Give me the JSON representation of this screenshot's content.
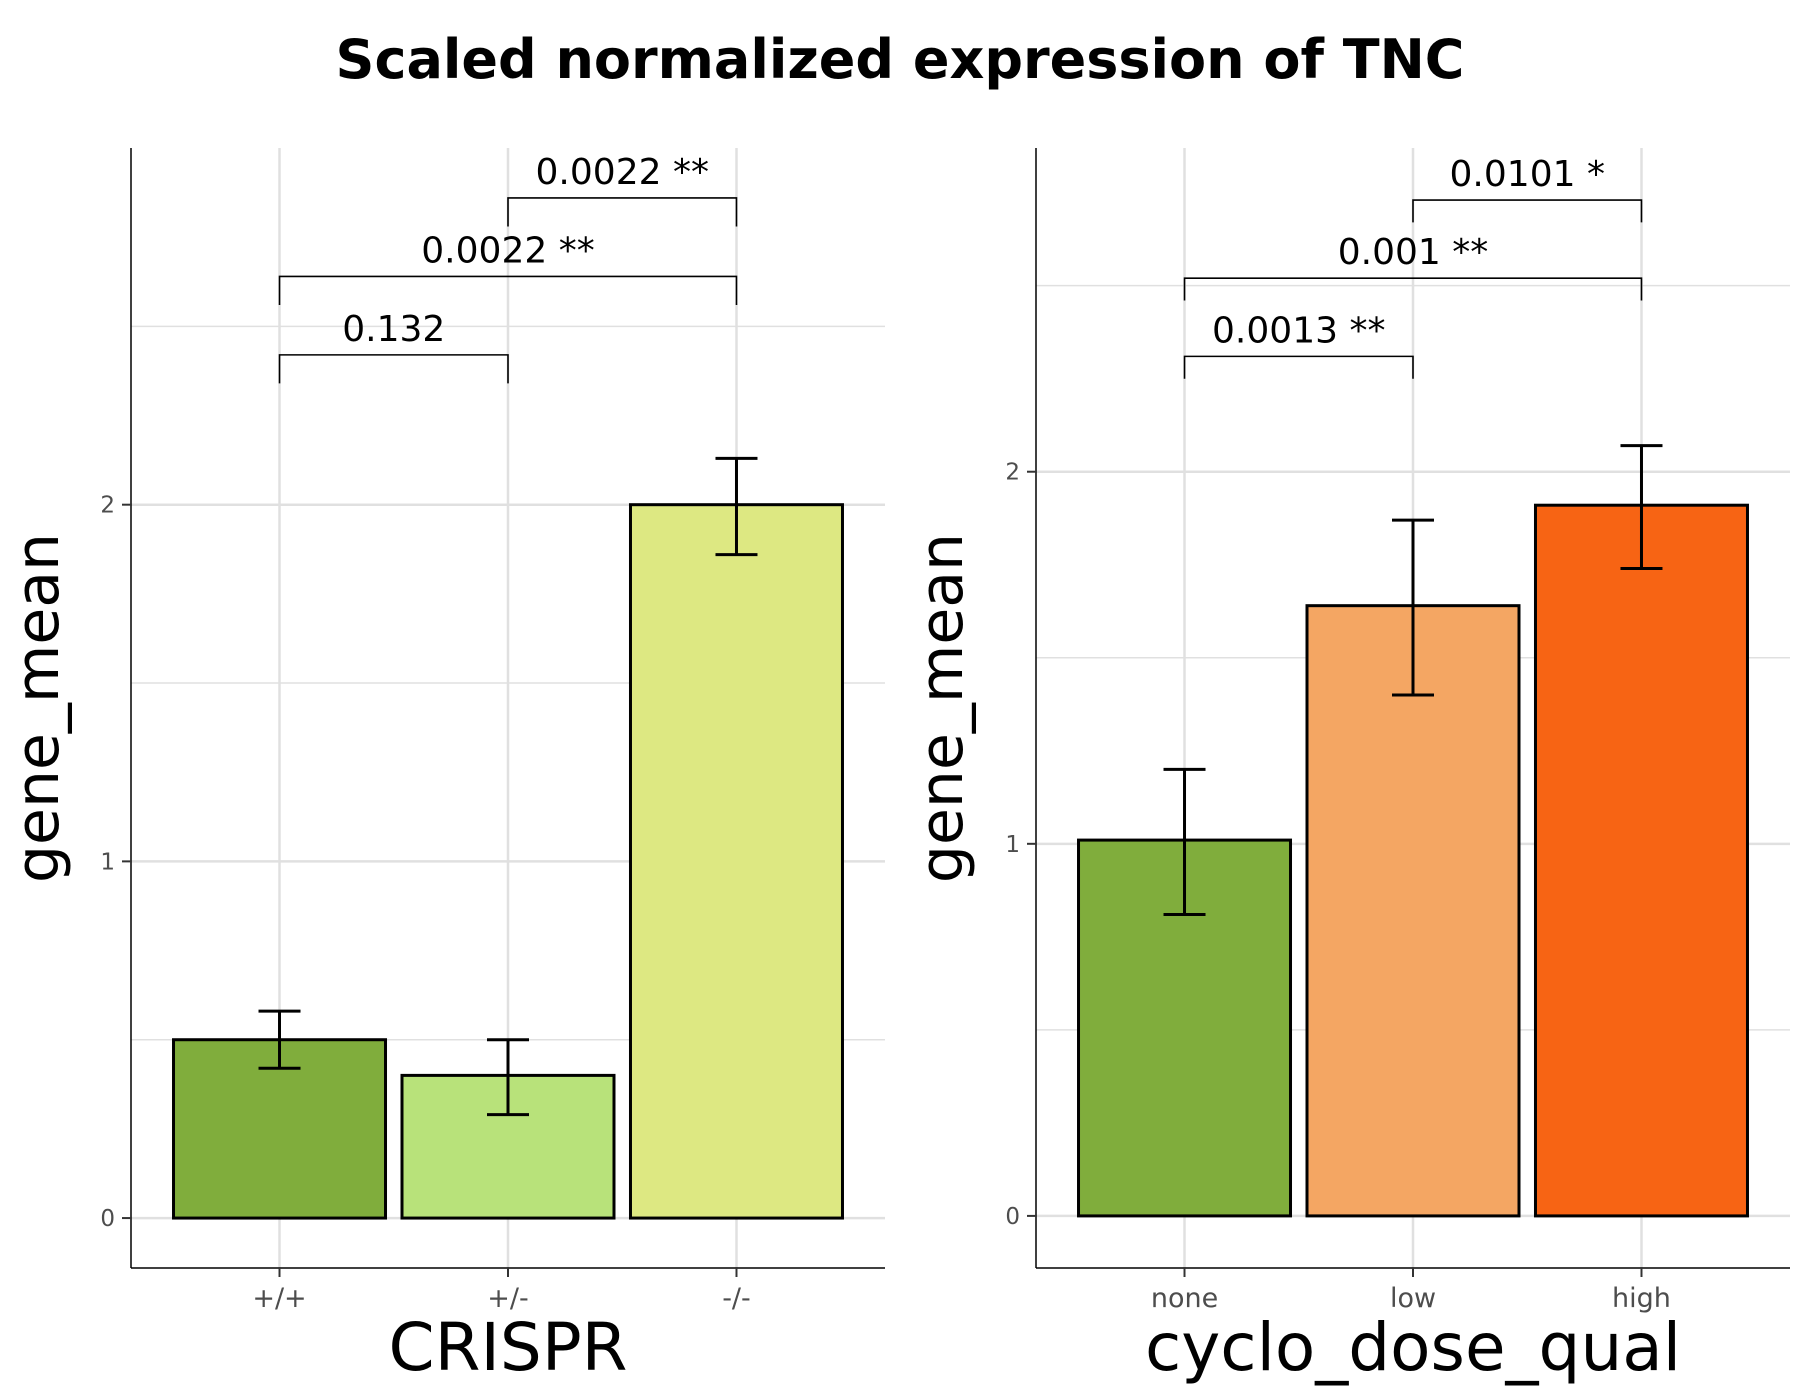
{
  "title": "Scaled normalized expression of TNC",
  "chart_data": [
    {
      "type": "bar",
      "title": "Scaled normalized expression of TNC",
      "xlabel": "CRISPR",
      "ylabel": "gene_mean",
      "categories": [
        "+/+",
        "+/-",
        "-/-"
      ],
      "values": [
        0.5,
        0.4,
        2.0
      ],
      "error_low": [
        0.42,
        0.29,
        1.86
      ],
      "error_high": [
        0.58,
        0.5,
        2.13
      ],
      "colors": [
        "#80ad3c",
        "#b8e27a",
        "#dde882"
      ],
      "y_ticks": [
        0,
        1,
        2
      ],
      "ylim": [
        -0.14,
        3.0
      ],
      "comparisons": [
        {
          "from": "+/+",
          "to": "+/-",
          "label": "0.132",
          "y": 2.42,
          "tick_bottom": 2.34
        },
        {
          "from": "+/+",
          "to": "-/-",
          "label": "0.0022 **",
          "y": 2.64,
          "tick_bottom": 2.56
        },
        {
          "from": "+/-",
          "to": "-/-",
          "label": "0.0022 **",
          "y": 2.86,
          "tick_bottom": 2.78
        }
      ]
    },
    {
      "type": "bar",
      "title": "Scaled normalized expression of TNC",
      "xlabel": "cyclo_dose_qual",
      "ylabel": "gene_mean",
      "categories": [
        "none",
        "low",
        "high"
      ],
      "values": [
        1.01,
        1.64,
        1.91
      ],
      "error_low": [
        0.81,
        1.4,
        1.74
      ],
      "error_high": [
        1.2,
        1.87,
        2.07
      ],
      "colors": [
        "#80ad3c",
        "#f4a663",
        "#f76414"
      ],
      "y_ticks": [
        0,
        1,
        2
      ],
      "ylim": [
        -0.14,
        2.87
      ],
      "comparisons": [
        {
          "from": "none",
          "to": "low",
          "label": "0.0013 **",
          "y": 2.31,
          "tick_bottom": 2.25
        },
        {
          "from": "none",
          "to": "high",
          "label": "0.001 **",
          "y": 2.52,
          "tick_bottom": 2.46
        },
        {
          "from": "low",
          "to": "high",
          "label": "0.0101 *",
          "y": 2.73,
          "tick_bottom": 2.67
        }
      ]
    }
  ]
}
